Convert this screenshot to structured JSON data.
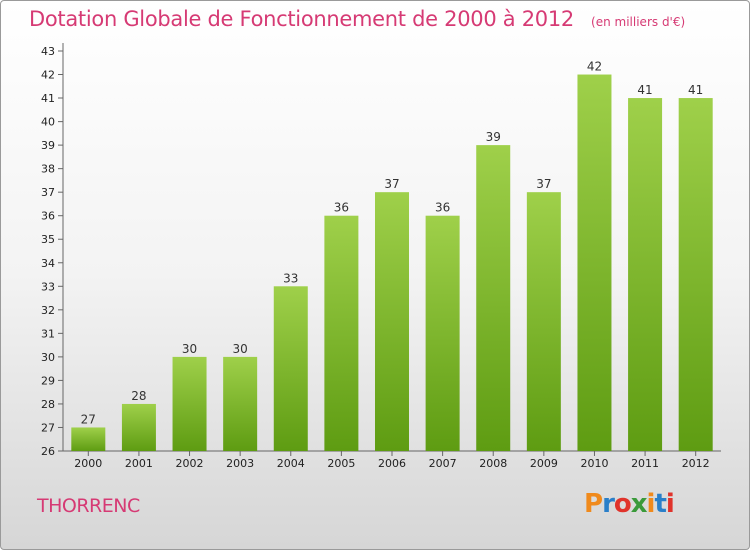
{
  "header": {
    "title": "Dotation Globale de Fonctionnement de 2000 à 2012",
    "unit": "(en milliers d'€)"
  },
  "footer": {
    "commune": "THORRENC",
    "logo_text": "Proxiti",
    "logo_colors": [
      "#f08a1c",
      "#2a7fc9",
      "#e0332b",
      "#3a9a3a",
      "#f08a1c",
      "#2a7fc9",
      "#e0332b"
    ]
  },
  "colors": {
    "accent": "#d63a74",
    "bar_top": "#9fd04a",
    "bar_bottom": "#5e9c12"
  },
  "chart_data": {
    "type": "bar",
    "categories": [
      "2000",
      "2001",
      "2002",
      "2003",
      "2004",
      "2005",
      "2006",
      "2007",
      "2008",
      "2009",
      "2010",
      "2011",
      "2012"
    ],
    "values": [
      27,
      28,
      30,
      30,
      33,
      36,
      37,
      36,
      39,
      37,
      42,
      41,
      41
    ],
    "ylim": [
      26,
      43
    ],
    "yticks": [
      26,
      27,
      28,
      29,
      30,
      31,
      32,
      33,
      34,
      35,
      36,
      37,
      38,
      39,
      40,
      41,
      42,
      43
    ],
    "grid": false,
    "data_labels": true
  }
}
